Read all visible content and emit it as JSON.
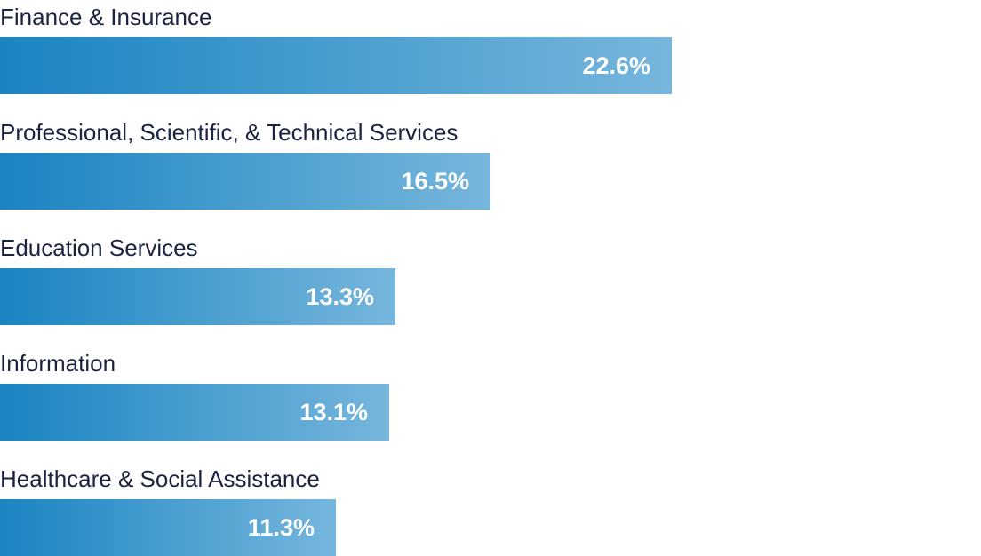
{
  "chart_data": {
    "type": "bar",
    "orientation": "horizontal",
    "title": "",
    "xlabel": "",
    "ylabel": "",
    "value_suffix": "%",
    "xlim": [
      0,
      33
    ],
    "categories": [
      "Finance & Insurance",
      "Professional, Scientific, & Technical Services",
      "Education Services",
      "Information",
      "Healthcare & Social Assistance"
    ],
    "values": [
      22.6,
      16.5,
      13.3,
      13.1,
      11.3
    ],
    "value_labels": [
      "22.6%",
      "16.5%",
      "13.3%",
      "13.1%",
      "11.3%"
    ],
    "colors": {
      "bar_start": "#1a84c2",
      "bar_end": "#76b6dc",
      "label_text": "#1c2340",
      "value_text": "#ffffff"
    }
  }
}
